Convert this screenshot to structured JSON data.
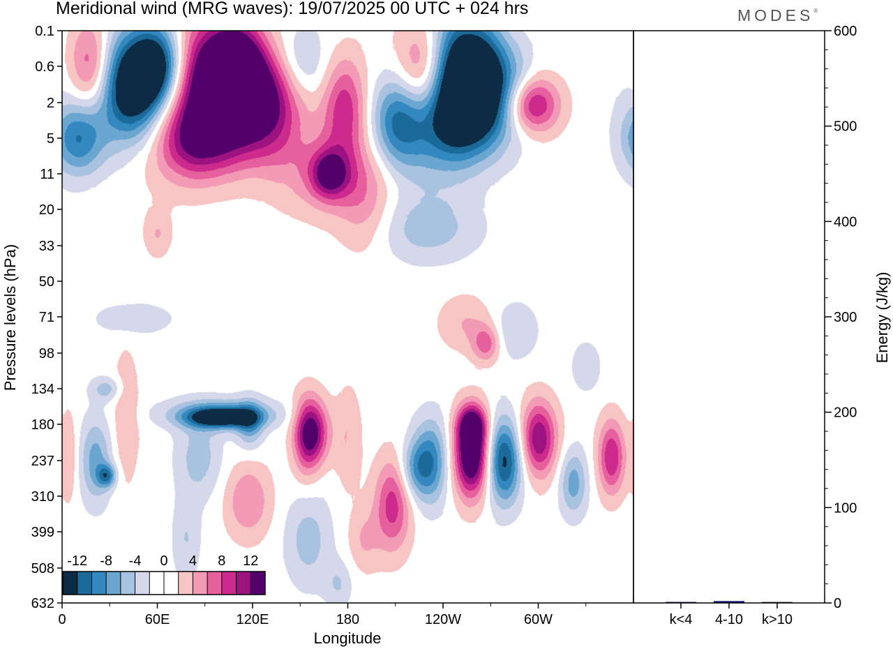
{
  "title": "Meridional wind (MRG waves):  19/07/2025  00 UTC  + 024 hrs",
  "brand": "MODES",
  "brand_mark": "®",
  "chart_data": [
    {
      "type": "heatmap",
      "title": "Meridional wind (MRG waves):  19/07/2025  00 UTC  + 024 hrs",
      "xlabel": "Longitude",
      "ylabel": "Pressure levels (hPa)",
      "x_ticks": [
        "0",
        "60E",
        "120E",
        "180",
        "120W",
        "60W"
      ],
      "y_ticks": [
        "0.1",
        "0.6",
        "2",
        "5",
        "11",
        "20",
        "33",
        "50",
        "71",
        "98",
        "134",
        "180",
        "237",
        "310",
        "399",
        "508",
        "632"
      ],
      "colorbar": {
        "labels": [
          "-12",
          "-8",
          "-4",
          "0",
          "4",
          "8",
          "12"
        ],
        "colors": [
          "#0d2b45",
          "#1c6a99",
          "#3388bf",
          "#6aa6cf",
          "#a9c2df",
          "#d4d8ea",
          "#ffffff",
          "#ffffff",
          "#f7c6c4",
          "#f39bb6",
          "#e7609e",
          "#cc2a8c",
          "#9c1281",
          "#54006b"
        ]
      },
      "blobs": [
        {
          "lon": 18,
          "lev": 0.6,
          "w": 10,
          "h": 0.5,
          "v": 10
        },
        {
          "lon": 40,
          "lev": 0.8,
          "w": 22,
          "h": 0.55,
          "v": -8
        },
        {
          "lon": 60,
          "lev": 0.6,
          "w": 12,
          "h": 0.45,
          "v": -12
        },
        {
          "lon": 98,
          "lev": 0.6,
          "w": 20,
          "h": 0.6,
          "v": 13
        },
        {
          "lon": 112,
          "lev": 0.9,
          "w": 10,
          "h": 0.5,
          "v": 10
        },
        {
          "lon": 150,
          "lev": 0.7,
          "w": 12,
          "h": 0.45,
          "v": -5
        },
        {
          "lon": 228,
          "lev": 0.8,
          "w": 12,
          "h": 0.55,
          "v": 9
        },
        {
          "lon": 250,
          "lev": 0.6,
          "w": 14,
          "h": 0.6,
          "v": -14
        },
        {
          "lon": 268,
          "lev": 0.9,
          "w": 10,
          "h": 0.55,
          "v": -8
        },
        {
          "lon": 285,
          "lev": 1.4,
          "w": 10,
          "h": 0.5,
          "v": -5
        },
        {
          "lon": 45,
          "lev": 2,
          "w": 14,
          "h": 0.55,
          "v": -9
        },
        {
          "lon": 85,
          "lev": 1.7,
          "w": 20,
          "h": 0.5,
          "v": 5
        },
        {
          "lon": 130,
          "lev": 1.6,
          "w": 18,
          "h": 0.45,
          "v": 10
        },
        {
          "lon": 178,
          "lev": 2.3,
          "w": 10,
          "h": 0.55,
          "v": 8
        },
        {
          "lon": 212,
          "lev": 3.2,
          "w": 12,
          "h": 0.5,
          "v": -9
        },
        {
          "lon": 250,
          "lev": 2.7,
          "w": 18,
          "h": 0.5,
          "v": -12
        },
        {
          "lon": 295,
          "lev": 2.1,
          "w": 12,
          "h": 0.3,
          "v": 11
        },
        {
          "lon": 10,
          "lev": 5,
          "w": 12,
          "h": 0.4,
          "v": -9
        },
        {
          "lon": 72,
          "lev": 5,
          "w": 25,
          "h": 0.55,
          "v": 4
        },
        {
          "lon": 90,
          "lev": 5.4,
          "w": 18,
          "h": 0.4,
          "v": 8
        },
        {
          "lon": 130,
          "lev": 5,
          "w": 15,
          "h": 0.4,
          "v": 4
        },
        {
          "lon": 232,
          "lev": 6,
          "w": 20,
          "h": 0.6,
          "v": -3
        },
        {
          "lon": 170,
          "lev": 11,
          "w": 25,
          "h": 0.45,
          "v": 5
        },
        {
          "lon": 168,
          "lev": 11,
          "w": 8,
          "h": 0.25,
          "v": 9
        },
        {
          "lon": 190,
          "lev": 20,
          "w": 12,
          "h": 0.5,
          "v": 3
        },
        {
          "lon": 230,
          "lev": 26,
          "w": 22,
          "h": 0.35,
          "v": -4
        },
        {
          "lon": 60,
          "lev": 28,
          "w": 6,
          "h": 0.25,
          "v": 3
        },
        {
          "lon": 28,
          "lev": 134,
          "w": 7,
          "h": 0.13,
          "v": -4
        },
        {
          "lon": 21,
          "lev": 237,
          "w": 7,
          "h": 0.45,
          "v": -6
        },
        {
          "lon": 28,
          "lev": 265,
          "w": 4,
          "h": 0.12,
          "v": -8
        },
        {
          "lon": 40,
          "lev": 170,
          "w": 6,
          "h": 0.7,
          "v": 3
        },
        {
          "lon": 100,
          "lev": 165,
          "w": 24,
          "h": 0.16,
          "v": -7
        },
        {
          "lon": 100,
          "lev": 170,
          "w": 14,
          "h": 0.1,
          "v": -11
        },
        {
          "lon": 86,
          "lev": 230,
          "w": 10,
          "h": 0.45,
          "v": -4
        },
        {
          "lon": 78,
          "lev": 420,
          "w": 6,
          "h": 0.45,
          "v": -3
        },
        {
          "lon": 118,
          "lev": 180,
          "w": 6,
          "h": 0.25,
          "v": -6
        },
        {
          "lon": 117,
          "lev": 320,
          "w": 10,
          "h": 0.4,
          "v": 5
        },
        {
          "lon": 158,
          "lev": 190,
          "w": 7,
          "h": 0.35,
          "v": 10
        },
        {
          "lon": 153,
          "lev": 200,
          "w": 6,
          "h": 0.45,
          "v": 5
        },
        {
          "lon": 180,
          "lev": 200,
          "w": 6,
          "h": 0.55,
          "v": 3
        },
        {
          "lon": 155,
          "lev": 420,
          "w": 10,
          "h": 0.5,
          "v": -4
        },
        {
          "lon": 208,
          "lev": 330,
          "w": 8,
          "h": 0.5,
          "v": 8
        },
        {
          "lon": 232,
          "lev": 237,
          "w": 8,
          "h": 0.45,
          "v": -8
        },
        {
          "lon": 222,
          "lev": 252,
          "w": 7,
          "h": 0.3,
          "v": -5
        },
        {
          "lon": 258,
          "lev": 225,
          "w": 8,
          "h": 0.45,
          "v": 16
        },
        {
          "lon": 258,
          "lev": 180,
          "w": 6,
          "h": 0.2,
          "v": 9
        },
        {
          "lon": 278,
          "lev": 237,
          "w": 8,
          "h": 0.45,
          "v": -12
        },
        {
          "lon": 300,
          "lev": 200,
          "w": 8,
          "h": 0.4,
          "v": 11
        },
        {
          "lon": 322,
          "lev": 280,
          "w": 6,
          "h": 0.35,
          "v": -6
        },
        {
          "lon": 346,
          "lev": 230,
          "w": 6,
          "h": 0.4,
          "v": 9
        },
        {
          "lon": 330,
          "lev": 110,
          "w": 6,
          "h": 0.25,
          "v": -3
        },
        {
          "lon": 254,
          "lev": 75,
          "w": 12,
          "h": 0.3,
          "v": 3
        },
        {
          "lon": 267,
          "lev": 90,
          "w": 6,
          "h": 0.2,
          "v": 6
        },
        {
          "lon": 285,
          "lev": 80,
          "w": 10,
          "h": 0.3,
          "v": -3
        },
        {
          "lon": 45,
          "lev": 72,
          "w": 16,
          "h": 0.16,
          "v": -3
        },
        {
          "lon": 4,
          "lev": 230,
          "w": 4,
          "h": 0.5,
          "v": 3
        },
        {
          "lon": 174,
          "lev": 560,
          "w": 6,
          "h": 0.25,
          "v": -3
        },
        {
          "lon": 190,
          "lev": 420,
          "w": 7,
          "h": 0.35,
          "v": 3
        }
      ]
    },
    {
      "type": "bar",
      "categories": [
        "k<4",
        "4-10",
        "k>10"
      ],
      "values": [
        1,
        2,
        0.5
      ],
      "ylabel": "Energy (J/kg)",
      "ylim": [
        0,
        600
      ],
      "y_ticks": [
        "0",
        "100",
        "200",
        "300",
        "400",
        "500",
        "600"
      ],
      "colors": {
        "k<4": "#1f1f6e",
        "4-10": "#1a1a80",
        "k>10": "#4a4a4a"
      }
    }
  ]
}
